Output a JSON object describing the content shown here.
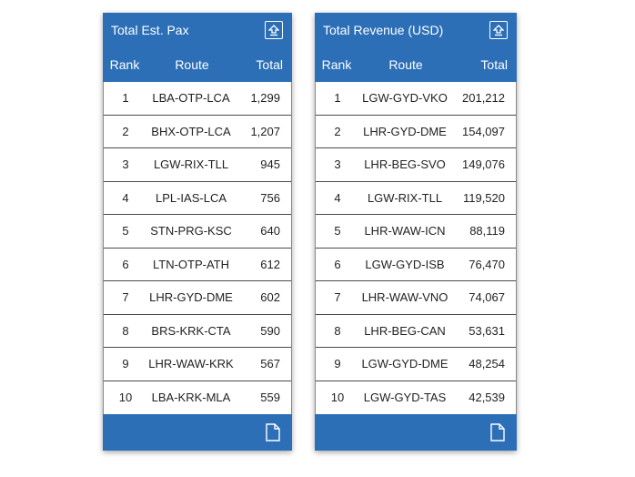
{
  "pax_card": {
    "title": "Total Est. Pax",
    "columns": {
      "rank": "Rank",
      "route": "Route",
      "total": "Total"
    },
    "rows": [
      {
        "rank": "1",
        "route": "LBA-OTP-LCA",
        "total": "1,299"
      },
      {
        "rank": "2",
        "route": "BHX-OTP-LCA",
        "total": "1,207"
      },
      {
        "rank": "3",
        "route": "LGW-RIX-TLL",
        "total": "945"
      },
      {
        "rank": "4",
        "route": "LPL-IAS-LCA",
        "total": "756"
      },
      {
        "rank": "5",
        "route": "STN-PRG-KSC",
        "total": "640"
      },
      {
        "rank": "6",
        "route": "LTN-OTP-ATH",
        "total": "612"
      },
      {
        "rank": "7",
        "route": "LHR-GYD-DME",
        "total": "602"
      },
      {
        "rank": "8",
        "route": "BRS-KRK-CTA",
        "total": "590"
      },
      {
        "rank": "9",
        "route": "LHR-WAW-KRK",
        "total": "567"
      },
      {
        "rank": "10",
        "route": "LBA-KRK-MLA",
        "total": "559"
      }
    ]
  },
  "revenue_card": {
    "title": "Total Revenue (USD)",
    "columns": {
      "rank": "Rank",
      "route": "Route",
      "total": "Total"
    },
    "rows": [
      {
        "rank": "1",
        "route": "LGW-GYD-VKO",
        "total": "201,212"
      },
      {
        "rank": "2",
        "route": "LHR-GYD-DME",
        "total": "154,097"
      },
      {
        "rank": "3",
        "route": "LHR-BEG-SVO",
        "total": "149,076"
      },
      {
        "rank": "4",
        "route": "LGW-RIX-TLL",
        "total": "119,520"
      },
      {
        "rank": "5",
        "route": "LHR-WAW-ICN",
        "total": "88,119"
      },
      {
        "rank": "6",
        "route": "LGW-GYD-ISB",
        "total": "76,470"
      },
      {
        "rank": "7",
        "route": "LHR-WAW-VNO",
        "total": "74,067"
      },
      {
        "rank": "8",
        "route": "LHR-BEG-CAN",
        "total": "53,631"
      },
      {
        "rank": "9",
        "route": "LGW-GYD-DME",
        "total": "48,254"
      },
      {
        "rank": "10",
        "route": "LGW-GYD-TAS",
        "total": "42,539"
      }
    ]
  },
  "icons": {
    "header": "upload-icon",
    "footer": "document-icon"
  },
  "colors": {
    "accent": "#2d6fb7"
  }
}
